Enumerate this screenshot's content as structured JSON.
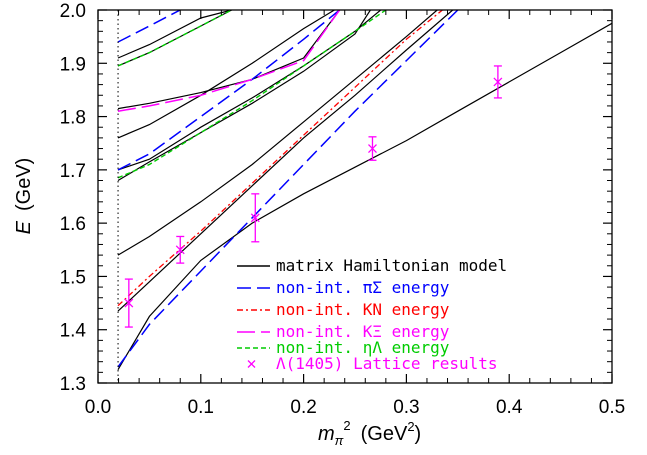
{
  "chart_data": {
    "type": "line",
    "xlabel_main": "m",
    "xlabel_sub": "π",
    "xlabel_sup": "2",
    "xlabel_unit": "(GeV",
    "xlabel_unit_sup": "2",
    "xlabel_unit_close": ")",
    "ylabel_main": "E",
    "ylabel_unit": "(GeV)",
    "xlim": [
      0.0,
      0.5
    ],
    "ylim": [
      1.3,
      2.0
    ],
    "xticks": [
      "0.0",
      "0.1",
      "0.2",
      "0.3",
      "0.4",
      "0.5"
    ],
    "yticks": [
      "1.3",
      "1.4",
      "1.5",
      "1.6",
      "1.7",
      "1.8",
      "1.9",
      "2.0"
    ],
    "physical_point_x": 0.0195,
    "colors": {
      "model": "#000000",
      "pi_sigma": "#0000ff",
      "kn": "#ff0000",
      "k_xi": "#ff00ff",
      "eta_lambda": "#00cc00",
      "lattice": "#ff00ff"
    },
    "legend": [
      {
        "label": "matrix Hamiltonian model",
        "style": "solid",
        "color": "#000000"
      },
      {
        "label": "non-int. πΣ energy",
        "style": "dash",
        "color": "#0000ff"
      },
      {
        "label": "non-int. KN energy",
        "style": "dashdot",
        "color": "#ff0000"
      },
      {
        "label": "non-int. KΞ energy",
        "style": "longdash",
        "color": "#ff00ff"
      },
      {
        "label": "non-int. ηΛ energy",
        "style": "shortdash",
        "color": "#00cc00"
      },
      {
        "label": "Λ(1405) Lattice results",
        "style": "marker",
        "color": "#ff00ff"
      }
    ],
    "series": [
      {
        "group": "model",
        "x": [
          0.0195,
          0.05,
          0.1,
          0.15,
          0.2,
          0.25,
          0.3,
          0.35,
          0.4,
          0.45,
          0.5
        ],
        "y": [
          1.325,
          1.425,
          1.53,
          1.6,
          1.655,
          1.705,
          1.755,
          1.81,
          1.865,
          1.92,
          1.975
        ]
      },
      {
        "group": "model",
        "x": [
          0.0195,
          0.05,
          0.1,
          0.15,
          0.2,
          0.25,
          0.3,
          0.345
        ],
        "y": [
          1.435,
          1.49,
          1.58,
          1.67,
          1.76,
          1.84,
          1.925,
          2.0
        ]
      },
      {
        "group": "model",
        "x": [
          0.0195,
          0.05,
          0.1,
          0.15,
          0.2,
          0.25,
          0.3,
          0.33
        ],
        "y": [
          1.54,
          1.575,
          1.64,
          1.71,
          1.79,
          1.87,
          1.95,
          2.0
        ]
      },
      {
        "group": "model",
        "x": [
          0.0195,
          0.05,
          0.1,
          0.15,
          0.2,
          0.25,
          0.265
        ],
        "y": [
          1.68,
          1.715,
          1.77,
          1.825,
          1.885,
          1.955,
          2.0
        ]
      },
      {
        "group": "model",
        "x": [
          0.0195,
          0.05,
          0.1,
          0.15,
          0.2,
          0.25,
          0.275
        ],
        "y": [
          1.7,
          1.72,
          1.78,
          1.835,
          1.895,
          1.96,
          2.0
        ]
      },
      {
        "group": "model",
        "x": [
          0.0195,
          0.05,
          0.1,
          0.15,
          0.2,
          0.23
        ],
        "y": [
          1.76,
          1.785,
          1.84,
          1.9,
          1.965,
          2.0
        ]
      },
      {
        "group": "model",
        "x": [
          0.0195,
          0.05,
          0.1,
          0.15,
          0.2,
          0.235
        ],
        "y": [
          1.815,
          1.825,
          1.845,
          1.87,
          1.91,
          2.0
        ]
      },
      {
        "group": "model",
        "x": [
          0.0195,
          0.05,
          0.1,
          0.13
        ],
        "y": [
          1.895,
          1.92,
          1.97,
          2.0
        ]
      },
      {
        "group": "model",
        "x": [
          0.0195,
          0.05,
          0.1,
          0.13
        ],
        "y": [
          1.91,
          1.935,
          1.985,
          2.0
        ]
      },
      {
        "group": "pi_sigma",
        "x": [
          0.0195,
          0.05,
          0.1,
          0.15,
          0.2,
          0.25,
          0.3,
          0.35
        ],
        "y": [
          1.33,
          1.41,
          1.51,
          1.61,
          1.71,
          1.81,
          1.905,
          2.0
        ]
      },
      {
        "group": "pi_sigma",
        "x": [
          0.0195,
          0.05,
          0.1,
          0.15,
          0.2,
          0.235
        ],
        "y": [
          1.7,
          1.73,
          1.8,
          1.87,
          1.945,
          2.0
        ]
      },
      {
        "group": "pi_sigma",
        "x": [
          0.0195,
          0.05,
          0.08
        ],
        "y": [
          1.94,
          1.97,
          2.0
        ]
      },
      {
        "group": "kn",
        "x": [
          0.0195,
          0.05,
          0.1,
          0.15,
          0.2,
          0.25,
          0.3,
          0.335
        ],
        "y": [
          1.445,
          1.5,
          1.585,
          1.675,
          1.765,
          1.855,
          1.945,
          2.0
        ]
      },
      {
        "group": "k_xi",
        "x": [
          0.0195,
          0.05,
          0.1,
          0.15,
          0.2,
          0.235
        ],
        "y": [
          1.81,
          1.82,
          1.84,
          1.87,
          1.905,
          2.0
        ]
      },
      {
        "group": "eta_lambda",
        "x": [
          0.0195,
          0.05,
          0.1,
          0.15,
          0.2,
          0.25,
          0.28
        ],
        "y": [
          1.685,
          1.71,
          1.77,
          1.83,
          1.895,
          1.96,
          2.0
        ]
      },
      {
        "group": "eta_lambda",
        "x": [
          0.0195,
          0.05,
          0.1,
          0.13
        ],
        "y": [
          1.895,
          1.92,
          1.97,
          2.0
        ]
      }
    ],
    "lattice": [
      {
        "x": 0.03,
        "y": 1.45,
        "err": 0.045
      },
      {
        "x": 0.08,
        "y": 1.55,
        "err": 0.025
      },
      {
        "x": 0.153,
        "y": 1.61,
        "err": 0.045
      },
      {
        "x": 0.267,
        "y": 1.74,
        "err": 0.022
      },
      {
        "x": 0.389,
        "y": 1.865,
        "err": 0.03
      }
    ]
  }
}
